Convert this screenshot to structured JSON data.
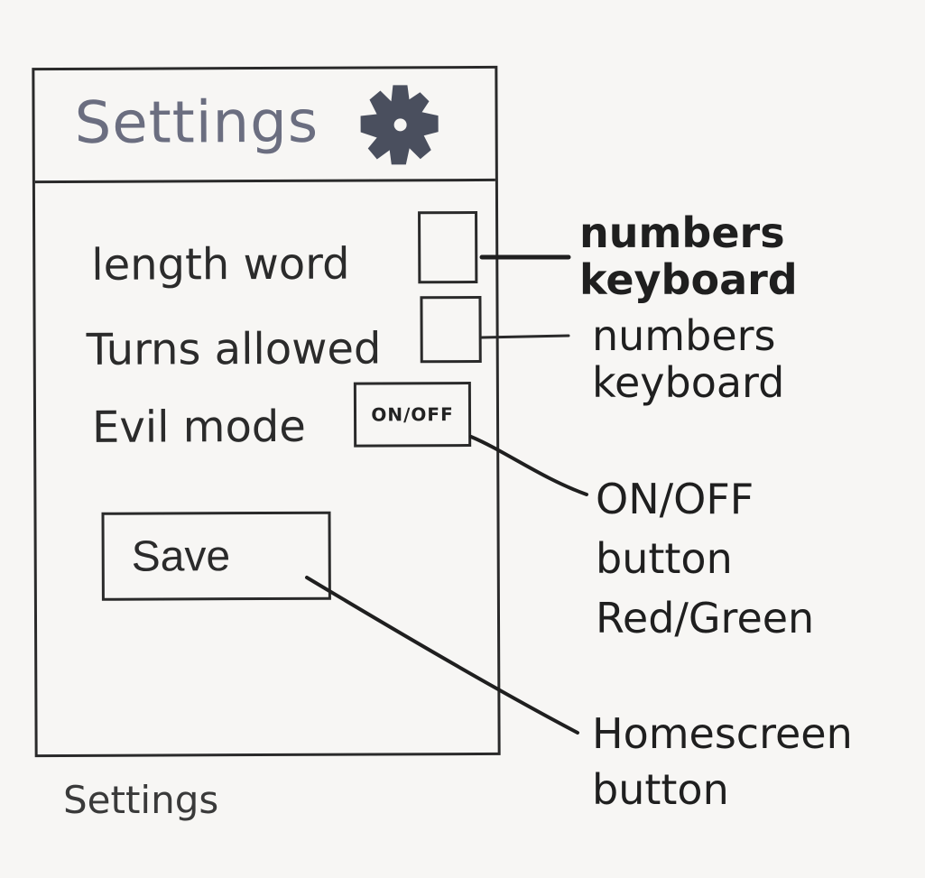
{
  "screen": {
    "title": "Settings",
    "title_icon": "gear-icon",
    "fields": [
      {
        "label": "length word",
        "control": "checkbox"
      },
      {
        "label": "Turns allowed",
        "control": "checkbox"
      }
    ],
    "evil_mode": {
      "label": "Evil mode",
      "toggle_on": "ON",
      "toggle_off": "OFF"
    },
    "save_label": "Save"
  },
  "caption": "Settings",
  "annotations": {
    "length_word_line1": "numbers",
    "length_word_line2": "keyboard",
    "turns_line1": "numbers",
    "turns_line2": "keyboard",
    "toggle_line1": "ON/OFF",
    "toggle_line2": "button",
    "toggle_line3": "Red/Green",
    "save_line1": "Homescreen",
    "save_line2": "button"
  }
}
